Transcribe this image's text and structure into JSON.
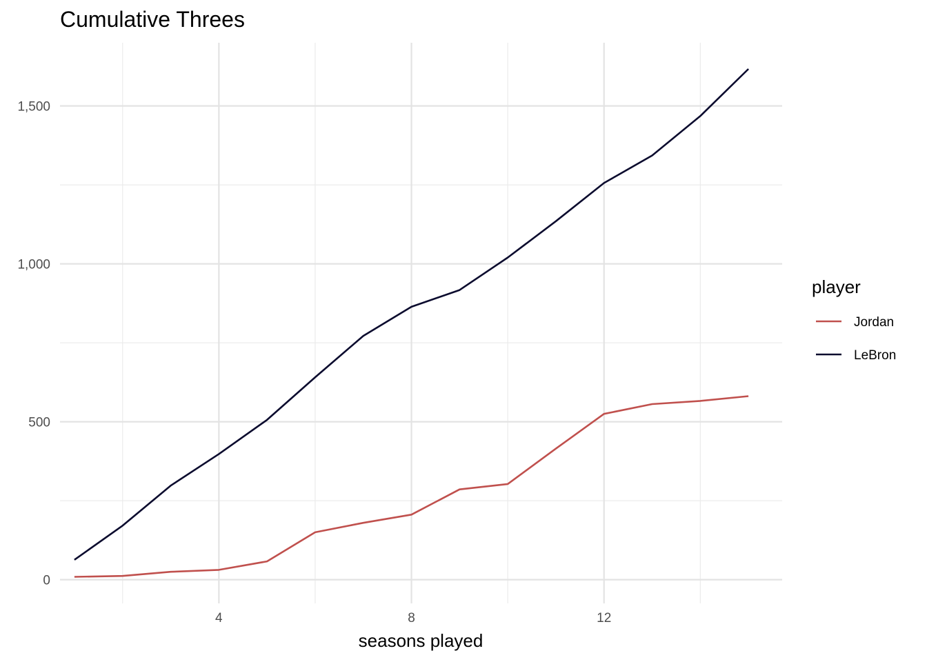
{
  "chart_data": {
    "type": "line",
    "title": "Cumulative Threes",
    "xlabel": "seasons played",
    "ylabel": "",
    "xlim": [
      0.7,
      15.7
    ],
    "ylim": [
      -75,
      1700
    ],
    "x_ticks": [
      4,
      8,
      12
    ],
    "x_tick_labels": [
      "4",
      "8",
      "12"
    ],
    "x_minor_ticks": [
      2,
      6,
      10,
      14
    ],
    "y_ticks": [
      0,
      500,
      1000,
      1500
    ],
    "y_tick_labels": [
      "0",
      "500",
      "1,000",
      "1,500"
    ],
    "y_minor_ticks": [
      250,
      750,
      1250
    ],
    "grid": true,
    "legend": {
      "title": "player",
      "position": "right"
    },
    "x": [
      1,
      2,
      3,
      4,
      5,
      6,
      7,
      8,
      9,
      10,
      11,
      12,
      13,
      14,
      15
    ],
    "series": [
      {
        "name": "Jordan",
        "color": "#c0504d",
        "values": [
          9,
          12,
          25,
          31,
          58,
          150,
          180,
          206,
          286,
          303,
          415,
          525,
          556,
          566,
          581
        ]
      },
      {
        "name": "LeBron",
        "color": "#0b0b2e",
        "values": [
          63,
          171,
          298,
          398,
          506,
          641,
          772,
          864,
          917,
          1020,
          1135,
          1256,
          1343,
          1468,
          1617
        ]
      }
    ]
  }
}
